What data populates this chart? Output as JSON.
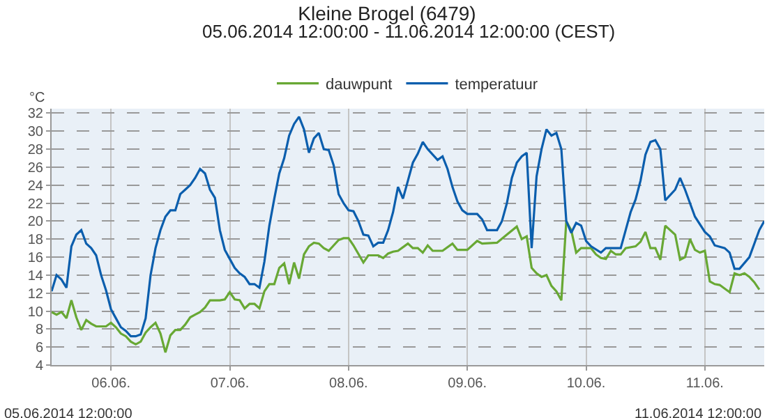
{
  "chart_data": {
    "type": "line",
    "title": "Kleine Brogel (6479)",
    "subtitle": "05.06.2014 12:00:00 - 11.06.2014 12:00:00 (CEST)",
    "ylabel": "°C",
    "annotations": [
      "05.06.2014 12:00:00",
      "11.06.2014 12:00:00"
    ],
    "xlim": [
      "2014-06-05T12:00",
      "2014-06-11T12:00"
    ],
    "xticks": [
      {
        "value": "2014-06-06",
        "label": "06.06."
      },
      {
        "value": "2014-06-07",
        "label": "07.06."
      },
      {
        "value": "2014-06-08",
        "label": "08.06."
      },
      {
        "value": "2014-06-09",
        "label": "09.06."
      },
      {
        "value": "2014-06-10",
        "label": "10.06."
      },
      {
        "value": "2014-06-11",
        "label": "11.06."
      }
    ],
    "ylim": [
      4,
      32.5
    ],
    "yticks": [
      4,
      6,
      8,
      10,
      12,
      14,
      16,
      18,
      20,
      22,
      24,
      26,
      28,
      30,
      32
    ],
    "grid": true,
    "legend": "top",
    "marker": "none",
    "line_style": "solid",
    "series": [
      {
        "name": "dauwpunt",
        "color": "#68a834",
        "x": [
          "2014-06-05T12:00",
          "2014-06-05T13:00",
          "2014-06-05T14:00",
          "2014-06-05T15:00",
          "2014-06-05T16:00",
          "2014-06-05T17:00",
          "2014-06-05T18:00",
          "2014-06-05T19:00",
          "2014-06-05T20:00",
          "2014-06-05T21:00",
          "2014-06-05T23:00",
          "2014-06-06T00:00",
          "2014-06-06T01:00",
          "2014-06-06T02:00",
          "2014-06-06T03:00",
          "2014-06-06T04:00",
          "2014-06-06T05:00",
          "2014-06-06T06:00",
          "2014-06-06T07:00",
          "2014-06-06T08:00",
          "2014-06-06T09:00",
          "2014-06-06T10:00",
          "2014-06-06T11:00",
          "2014-06-06T12:00",
          "2014-06-06T13:00",
          "2014-06-06T14:00",
          "2014-06-06T15:00",
          "2014-06-06T16:00",
          "2014-06-06T17:00",
          "2014-06-06T18:00",
          "2014-06-06T19:00",
          "2014-06-06T20:00",
          "2014-06-06T22:00",
          "2014-06-06T23:00",
          "2014-06-07T00:00",
          "2014-06-07T01:00",
          "2014-06-07T02:00",
          "2014-06-07T03:00",
          "2014-06-07T04:00",
          "2014-06-07T05:00",
          "2014-06-07T06:00",
          "2014-06-07T07:00",
          "2014-06-07T08:00",
          "2014-06-07T09:00",
          "2014-06-07T10:00",
          "2014-06-07T11:00",
          "2014-06-07T12:00",
          "2014-06-07T13:00",
          "2014-06-07T14:00",
          "2014-06-07T15:00",
          "2014-06-07T16:00",
          "2014-06-07T17:00",
          "2014-06-07T18:00",
          "2014-06-07T19:00",
          "2014-06-07T20:00",
          "2014-06-07T21:00",
          "2014-06-07T22:00",
          "2014-06-07T23:00",
          "2014-06-08T00:00",
          "2014-06-08T01:00",
          "2014-06-08T03:00",
          "2014-06-08T04:00",
          "2014-06-08T06:00",
          "2014-06-08T07:00",
          "2014-06-08T08:00",
          "2014-06-08T09:00",
          "2014-06-08T10:00",
          "2014-06-08T12:00",
          "2014-06-08T13:00",
          "2014-06-08T14:00",
          "2014-06-08T15:00",
          "2014-06-08T16:00",
          "2014-06-08T17:00",
          "2014-06-08T19:00",
          "2014-06-08T21:00",
          "2014-06-08T22:00",
          "2014-06-09T00:00",
          "2014-06-09T02:00",
          "2014-06-09T03:00",
          "2014-06-09T06:00",
          "2014-06-09T08:00",
          "2014-06-09T10:00",
          "2014-06-09T11:00",
          "2014-06-09T12:00",
          "2014-06-09T13:00",
          "2014-06-09T14:00",
          "2014-06-09T15:00",
          "2014-06-09T16:00",
          "2014-06-09T17:00",
          "2014-06-09T18:00",
          "2014-06-09T19:00",
          "2014-06-09T20:00",
          "2014-06-09T21:00",
          "2014-06-09T22:00",
          "2014-06-09T23:00",
          "2014-06-10T01:00",
          "2014-06-10T02:00",
          "2014-06-10T03:00",
          "2014-06-10T04:00",
          "2014-06-10T05:00",
          "2014-06-10T06:00",
          "2014-06-10T07:00",
          "2014-06-10T08:00",
          "2014-06-10T10:00",
          "2014-06-10T11:00",
          "2014-06-10T12:00",
          "2014-06-10T13:00",
          "2014-06-10T14:00",
          "2014-06-10T15:00",
          "2014-06-10T16:00",
          "2014-06-10T18:00",
          "2014-06-10T19:00",
          "2014-06-10T20:00",
          "2014-06-10T21:00",
          "2014-06-10T22:00",
          "2014-06-10T23:00",
          "2014-06-11T00:00",
          "2014-06-11T01:00",
          "2014-06-11T02:00",
          "2014-06-11T03:00",
          "2014-06-11T05:00",
          "2014-06-11T06:00",
          "2014-06-11T07:00",
          "2014-06-11T08:00",
          "2014-06-11T09:00",
          "2014-06-11T10:00",
          "2014-06-11T11:00"
        ],
        "values": [
          9.9,
          9.6,
          9.9,
          9.2,
          11.2,
          9.3,
          7.9,
          9,
          8.6,
          8.3,
          8.3,
          8.7,
          8.2,
          7.5,
          7.2,
          6.6,
          6.3,
          6.6,
          7.6,
          8.2,
          8.7,
          7.5,
          5.4,
          7.3,
          7.9,
          7.9,
          8.5,
          9.3,
          9.6,
          9.9,
          10.4,
          11.2,
          11.2,
          11.3,
          12.1,
          11.3,
          11.2,
          10.3,
          10.8,
          10.8,
          10.3,
          12.2,
          13,
          13,
          14.8,
          15.3,
          13,
          15.4,
          13.6,
          16.3,
          17.2,
          17.6,
          17.5,
          17,
          16.7,
          17.3,
          17.9,
          18.1,
          18.1,
          17.3,
          15.4,
          16.2,
          16.2,
          15.9,
          16.4,
          16.6,
          16.7,
          17.5,
          17,
          17,
          16.5,
          17.3,
          16.7,
          16.7,
          17.5,
          16.8,
          16.8,
          17.8,
          17.5,
          17.6,
          18.5,
          19.4,
          18,
          18.3,
          14.8,
          14.2,
          13.8,
          14,
          12.8,
          12.2,
          11.2,
          20,
          19,
          16.5,
          17,
          17,
          16.3,
          15.9,
          15.8,
          16.7,
          16.3,
          16.3,
          17,
          17.2,
          17.7,
          18.8,
          17,
          17,
          15.7,
          19.5,
          18.5,
          15.7,
          16,
          18,
          16.8,
          16.5,
          16.7,
          13.3,
          13,
          12.9,
          12.1,
          14.2,
          14,
          14.2,
          13.8,
          13.2,
          12.4
        ]
      },
      {
        "name": "temperatuur",
        "color": "#0b5ead",
        "x": [
          "2014-06-05T12:00",
          "2014-06-05T13:00",
          "2014-06-05T14:00",
          "2014-06-05T15:00",
          "2014-06-05T16:00",
          "2014-06-05T17:00",
          "2014-06-05T18:00",
          "2014-06-05T19:00",
          "2014-06-05T20:00",
          "2014-06-05T21:00",
          "2014-06-05T22:00",
          "2014-06-05T23:00",
          "2014-06-06T00:00",
          "2014-06-06T01:00",
          "2014-06-06T02:00",
          "2014-06-06T03:00",
          "2014-06-06T04:00",
          "2014-06-06T05:00",
          "2014-06-06T06:00",
          "2014-06-06T07:00",
          "2014-06-06T08:00",
          "2014-06-06T09:00",
          "2014-06-06T10:00",
          "2014-06-06T11:00",
          "2014-06-06T12:00",
          "2014-06-06T13:00",
          "2014-06-06T14:00",
          "2014-06-06T15:00",
          "2014-06-06T16:00",
          "2014-06-06T17:00",
          "2014-06-06T18:00",
          "2014-06-06T19:00",
          "2014-06-06T20:00",
          "2014-06-06T21:00",
          "2014-06-06T22:00",
          "2014-06-06T23:00",
          "2014-06-07T00:00",
          "2014-06-07T01:00",
          "2014-06-07T02:00",
          "2014-06-07T03:00",
          "2014-06-07T04:00",
          "2014-06-07T05:00",
          "2014-06-07T06:00",
          "2014-06-07T07:00",
          "2014-06-07T08:00",
          "2014-06-07T09:00",
          "2014-06-07T10:00",
          "2014-06-07T11:00",
          "2014-06-07T12:00",
          "2014-06-07T13:00",
          "2014-06-07T14:00",
          "2014-06-07T15:00",
          "2014-06-07T16:00",
          "2014-06-07T17:00",
          "2014-06-07T18:00",
          "2014-06-07T19:00",
          "2014-06-07T20:00",
          "2014-06-07T21:00",
          "2014-06-07T22:00",
          "2014-06-07T23:00",
          "2014-06-08T00:00",
          "2014-06-08T01:00",
          "2014-06-08T02:00",
          "2014-06-08T03:00",
          "2014-06-08T04:00",
          "2014-06-08T05:00",
          "2014-06-08T06:00",
          "2014-06-08T07:00",
          "2014-06-08T08:00",
          "2014-06-08T09:00",
          "2014-06-08T10:00",
          "2014-06-08T11:00",
          "2014-06-08T12:00",
          "2014-06-08T13:00",
          "2014-06-08T14:00",
          "2014-06-08T15:00",
          "2014-06-08T16:00",
          "2014-06-08T18:00",
          "2014-06-08T19:00",
          "2014-06-08T20:00",
          "2014-06-08T21:00",
          "2014-06-08T22:00",
          "2014-06-08T23:00",
          "2014-06-09T00:00",
          "2014-06-09T02:00",
          "2014-06-09T03:00",
          "2014-06-09T04:00",
          "2014-06-09T06:00",
          "2014-06-09T07:00",
          "2014-06-09T08:00",
          "2014-06-09T09:00",
          "2014-06-09T10:00",
          "2014-06-09T11:00",
          "2014-06-09T12:00",
          "2014-06-09T13:00",
          "2014-06-09T14:00",
          "2014-06-09T15:00",
          "2014-06-09T16:00",
          "2014-06-09T17:00",
          "2014-06-09T18:00",
          "2014-06-09T19:00",
          "2014-06-09T20:00",
          "2014-06-09T21:00",
          "2014-06-09T22:00",
          "2014-06-09T23:00",
          "2014-06-10T00:00",
          "2014-06-10T01:00",
          "2014-06-10T03:00",
          "2014-06-10T04:00",
          "2014-06-10T06:00",
          "2014-06-10T07:00",
          "2014-06-10T08:00",
          "2014-06-10T09:00",
          "2014-06-10T10:00",
          "2014-06-10T11:00",
          "2014-06-10T12:00",
          "2014-06-10T13:00",
          "2014-06-10T14:00",
          "2014-06-10T15:00",
          "2014-06-10T16:00",
          "2014-06-10T18:00",
          "2014-06-10T19:00",
          "2014-06-10T20:00",
          "2014-06-10T22:00",
          "2014-06-11T00:00",
          "2014-06-11T01:00",
          "2014-06-11T02:00",
          "2014-06-11T04:00",
          "2014-06-11T05:00",
          "2014-06-11T06:00",
          "2014-06-11T07:00",
          "2014-06-11T09:00",
          "2014-06-11T10:00",
          "2014-06-11T11:00",
          "2014-06-11T12:00"
        ],
        "values": [
          12.2,
          14,
          13.5,
          12.6,
          17.2,
          18.5,
          19,
          17.5,
          17,
          16.2,
          14,
          12.3,
          10.2,
          9.2,
          8.2,
          7.8,
          7.2,
          7.2,
          7.4,
          9.2,
          14,
          17,
          19,
          20.5,
          21.2,
          21.2,
          23,
          23.5,
          24,
          24.8,
          25.8,
          25.3,
          23.5,
          22.6,
          19,
          16.8,
          15.8,
          14.8,
          14.2,
          13.8,
          13,
          13,
          12.6,
          15.5,
          19.5,
          22.5,
          25.3,
          27,
          29.5,
          30.8,
          31.6,
          30.2,
          27.6,
          29.2,
          29.8,
          28,
          27.9,
          26.2,
          23,
          22,
          21.2,
          21.1,
          20,
          18.5,
          18.4,
          17.2,
          17.6,
          17.6,
          19,
          21,
          23.8,
          22.5,
          24.5,
          26.5,
          27.5,
          28.8,
          28,
          26.8,
          27.2,
          25.8,
          23.8,
          22.2,
          21.2,
          20.8,
          20.8,
          20.2,
          19,
          19,
          20,
          22,
          24.8,
          26.5,
          27.2,
          27.6,
          17,
          25,
          28,
          30.2,
          29.5,
          29.8,
          28,
          20,
          18.7,
          19.8,
          19.5,
          17.8,
          17.2,
          16.5,
          17,
          17,
          17,
          19,
          21,
          22.4,
          24.5,
          27.4,
          28.8,
          29,
          28,
          22.3,
          23.5,
          24.8,
          23.5,
          20.5,
          18.8,
          18.3,
          17.3,
          17,
          16.5,
          14.7,
          14.7,
          16,
          17.5,
          19,
          20
        ]
      }
    ]
  }
}
